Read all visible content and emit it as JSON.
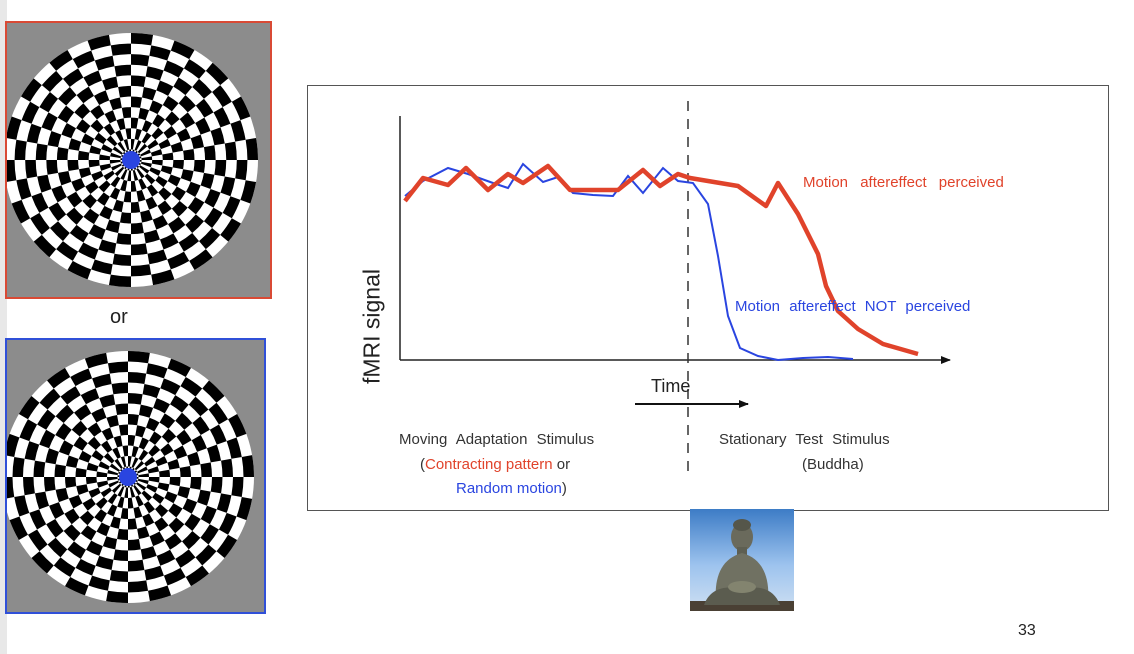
{
  "or_label": "or",
  "chart": {
    "ylabel": "fMRI signal",
    "xlabel": "Time",
    "curve_perceived_label": "Motion aftereffect perceived",
    "curve_not_perceived_label": "Motion aftereffect NOT perceived",
    "adaptation": {
      "line1": "Moving Adaptation Stimulus",
      "open_paren": "(",
      "contracting": "Contracting pattern",
      "or_word": " or",
      "random": "Random motion",
      "close_paren": ")"
    },
    "test": {
      "line1": "Stationary Test Stimulus",
      "line2": "(Buddha)"
    }
  },
  "page_number": "33",
  "colors": {
    "red": "#e0432b",
    "blue": "#2a45e0",
    "red_border": "#d94a35",
    "blue_border": "#3050d8"
  }
}
